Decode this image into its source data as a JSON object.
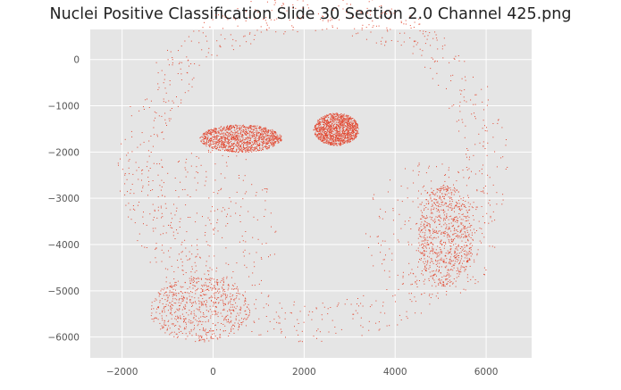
{
  "chart_data": {
    "type": "scatter",
    "title": "Nuclei Positive Classification Slide  30 Section 2.0 Channel 425.png",
    "xlabel": "",
    "ylabel": "",
    "xlim": [
      -2700,
      7000
    ],
    "ylim": [
      -6450,
      650
    ],
    "xticks": [
      -2000,
      0,
      2000,
      4000,
      6000
    ],
    "yticks": [
      0,
      -1000,
      -2000,
      -3000,
      -4000,
      -5000,
      -6000
    ],
    "xtick_labels": [
      "−2000",
      "0",
      "2000",
      "4000",
      "6000"
    ],
    "ytick_labels": [
      "0",
      "−1000",
      "−2000",
      "−3000",
      "−4000",
      "−5000",
      "−6000"
    ],
    "grid": true,
    "series": [
      {
        "color": "#e24a33",
        "marker_size": 1,
        "n_points": 4200,
        "regions": [
          {
            "region": "cortex-band",
            "center": [
              2200,
              -2300
            ],
            "outer_radius": [
              4300,
              3800
            ],
            "inner_radius": [
              3300,
              2850
            ],
            "angle_range_deg": [
              -180,
              185
            ],
            "density": 0.62
          },
          {
            "region": "left-hemisphere-core",
            "center": [
              0,
              -3700
            ],
            "extent": [
              1400,
              1800
            ],
            "density": 0.18
          },
          {
            "region": "right-hemisphere-core",
            "center": [
              4800,
              -3700
            ],
            "extent": [
              1500,
              1500
            ],
            "density": 0.18
          },
          {
            "region": "hippocampus-left",
            "center": [
              600,
              -1700
            ],
            "extent": [
              900,
              300
            ],
            "density": 0.9
          },
          {
            "region": "hippocampus-right",
            "center": [
              2700,
              -1500
            ],
            "extent": [
              500,
              350
            ],
            "density": 0.9
          },
          {
            "region": "lower-left-lobe",
            "center": [
              -300,
              -5400
            ],
            "extent": [
              1100,
              700
            ],
            "density": 0.45
          },
          {
            "region": "right-lateral-dense",
            "center": [
              5100,
              -3800
            ],
            "extent": [
              600,
              1100
            ],
            "density": 0.5
          }
        ]
      }
    ]
  }
}
